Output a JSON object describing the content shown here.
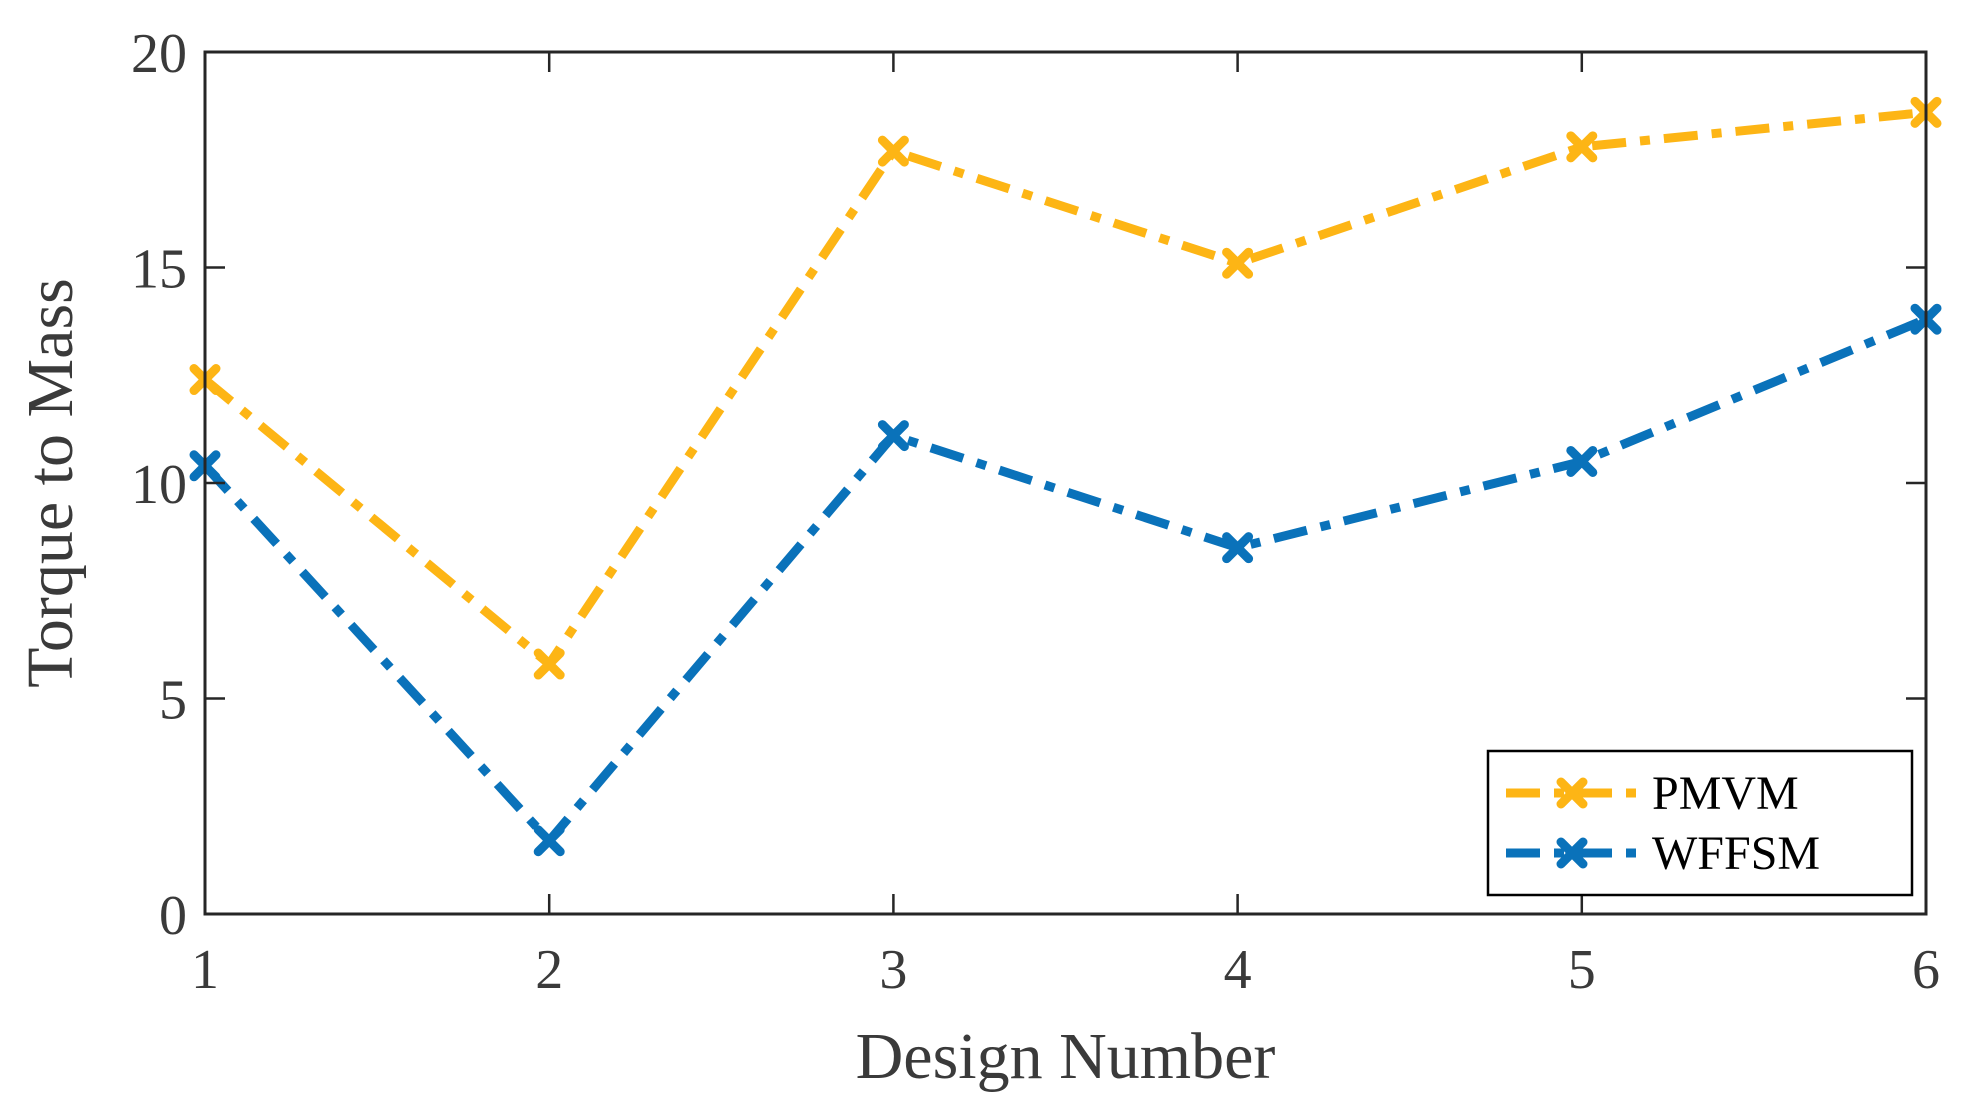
{
  "chart_data": {
    "type": "line",
    "title": "",
    "xlabel": "Design Number",
    "ylabel": "Torque to Mass",
    "xlim": [
      1,
      6
    ],
    "ylim": [
      0,
      20
    ],
    "x": [
      1,
      2,
      3,
      4,
      5,
      6
    ],
    "x_ticks": [
      "1",
      "2",
      "3",
      "4",
      "5",
      "6"
    ],
    "y_ticks": [
      "0",
      "5",
      "10",
      "15",
      "20"
    ],
    "grid": false,
    "legend_position": "bottom-right",
    "series": [
      {
        "name": "PMVM",
        "color": "#FDB515",
        "line_style": "dash-dot",
        "marker": "x",
        "values": [
          12.4,
          5.8,
          17.7,
          15.1,
          17.8,
          18.6
        ]
      },
      {
        "name": "WFFSM",
        "color": "#0A72BA",
        "line_style": "dash-dot",
        "marker": "x",
        "values": [
          10.4,
          1.7,
          11.1,
          8.5,
          10.5,
          13.8
        ]
      }
    ]
  }
}
